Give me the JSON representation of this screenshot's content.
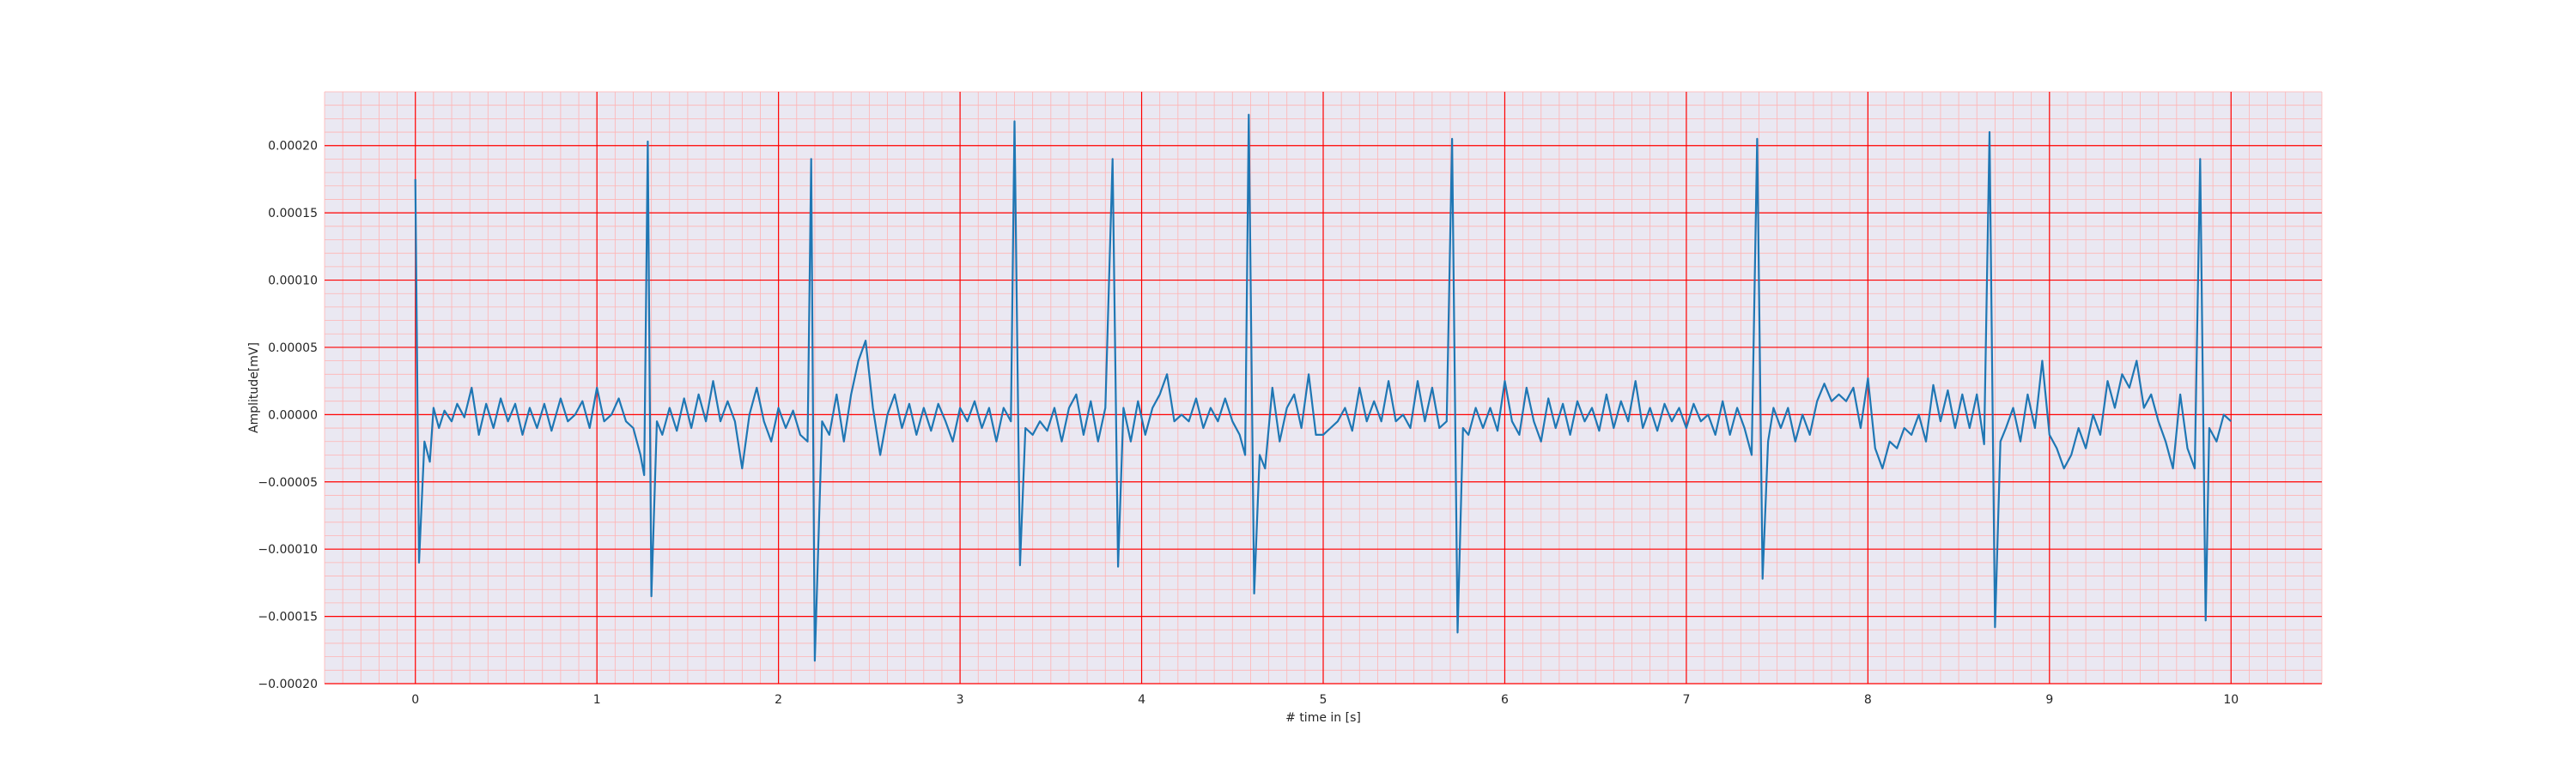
{
  "chart_data": {
    "type": "line",
    "title": "",
    "xlabel": "# time in [s]",
    "ylabel": "Amplitude[mV]",
    "xlim": [
      -0.5,
      10.5
    ],
    "ylim": [
      -0.0002,
      0.00024
    ],
    "xticks": [
      0,
      1,
      2,
      3,
      4,
      5,
      6,
      7,
      8,
      9,
      10
    ],
    "xtick_labels": [
      "0",
      "1",
      "2",
      "3",
      "4",
      "5",
      "6",
      "7",
      "8",
      "9",
      "10"
    ],
    "yticks": [
      -0.0002,
      -0.00015,
      -0.0001,
      -5e-05,
      0.0,
      5e-05,
      0.0001,
      0.00015,
      0.0002
    ],
    "ytick_labels": [
      "−0.00020",
      "−0.00015",
      "−0.00010",
      "−0.00005",
      "0.00000",
      "0.00005",
      "0.00010",
      "0.00015",
      "0.00020"
    ],
    "grid": true,
    "minor_grid": true,
    "colors": {
      "plot_background": "#eae8f2",
      "major_grid": "#ff0000",
      "minor_grid": "#ffb3b3",
      "line": "#1f77b4"
    },
    "series": [
      {
        "values_format": "[x_seconds, amplitude]",
        "points": [
          [
            0.0,
            0.000175
          ],
          [
            0.02,
            -0.00011
          ],
          [
            0.05,
            -2e-05
          ],
          [
            0.08,
            -3.5e-05
          ],
          [
            0.1,
            5e-06
          ],
          [
            0.13,
            -1e-05
          ],
          [
            0.16,
            3e-06
          ],
          [
            0.2,
            -5e-06
          ],
          [
            0.23,
            8e-06
          ],
          [
            0.27,
            -2e-06
          ],
          [
            0.31,
            2e-05
          ],
          [
            0.35,
            -1.5e-05
          ],
          [
            0.39,
            8e-06
          ],
          [
            0.43,
            -1e-05
          ],
          [
            0.47,
            1.2e-05
          ],
          [
            0.51,
            -5e-06
          ],
          [
            0.55,
            8e-06
          ],
          [
            0.59,
            -1.5e-05
          ],
          [
            0.63,
            5e-06
          ],
          [
            0.67,
            -1e-05
          ],
          [
            0.71,
            8e-06
          ],
          [
            0.75,
            -1.2e-05
          ],
          [
            0.8,
            1.2e-05
          ],
          [
            0.84,
            -5e-06
          ],
          [
            0.88,
            0.0
          ],
          [
            0.92,
            1e-05
          ],
          [
            0.96,
            -1e-05
          ],
          [
            1.0,
            2e-05
          ],
          [
            1.04,
            -5e-06
          ],
          [
            1.08,
            0.0
          ],
          [
            1.12,
            1.2e-05
          ],
          [
            1.16,
            -5e-06
          ],
          [
            1.2,
            -1e-05
          ],
          [
            1.24,
            -3e-05
          ],
          [
            1.26,
            -4.5e-05
          ],
          [
            1.28,
            0.000203
          ],
          [
            1.3,
            -0.000135
          ],
          [
            1.33,
            -5e-06
          ],
          [
            1.36,
            -1.5e-05
          ],
          [
            1.4,
            5e-06
          ],
          [
            1.44,
            -1.2e-05
          ],
          [
            1.48,
            1.2e-05
          ],
          [
            1.52,
            -1e-05
          ],
          [
            1.56,
            1.5e-05
          ],
          [
            1.6,
            -5e-06
          ],
          [
            1.64,
            2.5e-05
          ],
          [
            1.68,
            -5e-06
          ],
          [
            1.72,
            1e-05
          ],
          [
            1.76,
            -5e-06
          ],
          [
            1.8,
            -4e-05
          ],
          [
            1.84,
            0.0
          ],
          [
            1.88,
            2e-05
          ],
          [
            1.92,
            -5e-06
          ],
          [
            1.96,
            -2e-05
          ],
          [
            2.0,
            5e-06
          ],
          [
            2.04,
            -1e-05
          ],
          [
            2.08,
            3e-06
          ],
          [
            2.12,
            -1.5e-05
          ],
          [
            2.16,
            -2e-05
          ],
          [
            2.18,
            0.00019
          ],
          [
            2.2,
            -0.000183
          ],
          [
            2.24,
            -5e-06
          ],
          [
            2.28,
            -1.5e-05
          ],
          [
            2.32,
            1.5e-05
          ],
          [
            2.36,
            -2e-05
          ],
          [
            2.4,
            1.5e-05
          ],
          [
            2.44,
            4e-05
          ],
          [
            2.48,
            5.5e-05
          ],
          [
            2.52,
            5e-06
          ],
          [
            2.56,
            -3e-05
          ],
          [
            2.6,
            0.0
          ],
          [
            2.64,
            1.5e-05
          ],
          [
            2.68,
            -1e-05
          ],
          [
            2.72,
            8e-06
          ],
          [
            2.76,
            -1.5e-05
          ],
          [
            2.8,
            5e-06
          ],
          [
            2.84,
            -1.2e-05
          ],
          [
            2.88,
            8e-06
          ],
          [
            2.92,
            -5e-06
          ],
          [
            2.96,
            -2e-05
          ],
          [
            3.0,
            5e-06
          ],
          [
            3.04,
            -5e-06
          ],
          [
            3.08,
            1e-05
          ],
          [
            3.12,
            -1e-05
          ],
          [
            3.16,
            5e-06
          ],
          [
            3.2,
            -2e-05
          ],
          [
            3.24,
            5e-06
          ],
          [
            3.28,
            -5e-06
          ],
          [
            3.3,
            0.000218
          ],
          [
            3.33,
            -0.000112
          ],
          [
            3.36,
            -1e-05
          ],
          [
            3.4,
            -1.5e-05
          ],
          [
            3.44,
            -5e-06
          ],
          [
            3.48,
            -1.2e-05
          ],
          [
            3.52,
            5e-06
          ],
          [
            3.56,
            -2e-05
          ],
          [
            3.6,
            5e-06
          ],
          [
            3.64,
            1.5e-05
          ],
          [
            3.68,
            -1.5e-05
          ],
          [
            3.72,
            1e-05
          ],
          [
            3.76,
            -2e-05
          ],
          [
            3.8,
            5e-06
          ],
          [
            3.84,
            0.00019
          ],
          [
            3.87,
            -0.000113
          ],
          [
            3.9,
            5e-06
          ],
          [
            3.94,
            -2e-05
          ],
          [
            3.98,
            1e-05
          ],
          [
            4.02,
            -1.5e-05
          ],
          [
            4.06,
            5e-06
          ],
          [
            4.1,
            1.5e-05
          ],
          [
            4.14,
            3e-05
          ],
          [
            4.18,
            -5e-06
          ],
          [
            4.22,
            0.0
          ],
          [
            4.26,
            -5e-06
          ],
          [
            4.3,
            1.2e-05
          ],
          [
            4.34,
            -1e-05
          ],
          [
            4.38,
            5e-06
          ],
          [
            4.42,
            -5e-06
          ],
          [
            4.46,
            1.2e-05
          ],
          [
            4.5,
            -5e-06
          ],
          [
            4.54,
            -1.5e-05
          ],
          [
            4.57,
            -3e-05
          ],
          [
            4.59,
            0.000223
          ],
          [
            4.62,
            -0.000133
          ],
          [
            4.65,
            -3e-05
          ],
          [
            4.68,
            -4e-05
          ],
          [
            4.72,
            2e-05
          ],
          [
            4.76,
            -2e-05
          ],
          [
            4.8,
            5e-06
          ],
          [
            4.84,
            1.5e-05
          ],
          [
            4.88,
            -1e-05
          ],
          [
            4.92,
            3e-05
          ],
          [
            4.96,
            -1.5e-05
          ],
          [
            5.0,
            -1.5e-05
          ],
          [
            5.04,
            -1e-05
          ],
          [
            5.08,
            -5e-06
          ],
          [
            5.12,
            5e-06
          ],
          [
            5.16,
            -1.2e-05
          ],
          [
            5.2,
            2e-05
          ],
          [
            5.24,
            -5e-06
          ],
          [
            5.28,
            1e-05
          ],
          [
            5.32,
            -5e-06
          ],
          [
            5.36,
            2.5e-05
          ],
          [
            5.4,
            -5e-06
          ],
          [
            5.44,
            0.0
          ],
          [
            5.48,
            -1e-05
          ],
          [
            5.52,
            2.5e-05
          ],
          [
            5.56,
            -5e-06
          ],
          [
            5.6,
            2e-05
          ],
          [
            5.64,
            -1e-05
          ],
          [
            5.68,
            -5e-06
          ],
          [
            5.71,
            0.000205
          ],
          [
            5.74,
            -0.000162
          ],
          [
            5.77,
            -1e-05
          ],
          [
            5.8,
            -1.5e-05
          ],
          [
            5.84,
            5e-06
          ],
          [
            5.88,
            -1e-05
          ],
          [
            5.92,
            5e-06
          ],
          [
            5.96,
            -1.2e-05
          ],
          [
            6.0,
            2.5e-05
          ],
          [
            6.04,
            -5e-06
          ],
          [
            6.08,
            -1.5e-05
          ],
          [
            6.12,
            2e-05
          ],
          [
            6.16,
            -5e-06
          ],
          [
            6.2,
            -2e-05
          ],
          [
            6.24,
            1.2e-05
          ],
          [
            6.28,
            -1e-05
          ],
          [
            6.32,
            8e-06
          ],
          [
            6.36,
            -1.5e-05
          ],
          [
            6.4,
            1e-05
          ],
          [
            6.44,
            -5e-06
          ],
          [
            6.48,
            5e-06
          ],
          [
            6.52,
            -1.2e-05
          ],
          [
            6.56,
            1.5e-05
          ],
          [
            6.6,
            -1e-05
          ],
          [
            6.64,
            1e-05
          ],
          [
            6.68,
            -5e-06
          ],
          [
            6.72,
            2.5e-05
          ],
          [
            6.76,
            -1e-05
          ],
          [
            6.8,
            5e-06
          ],
          [
            6.84,
            -1.2e-05
          ],
          [
            6.88,
            8e-06
          ],
          [
            6.92,
            -5e-06
          ],
          [
            6.96,
            5e-06
          ],
          [
            7.0,
            -1e-05
          ],
          [
            7.04,
            8e-06
          ],
          [
            7.08,
            -5e-06
          ],
          [
            7.12,
            0.0
          ],
          [
            7.16,
            -1.5e-05
          ],
          [
            7.2,
            1e-05
          ],
          [
            7.24,
            -1.5e-05
          ],
          [
            7.28,
            5e-06
          ],
          [
            7.32,
            -1e-05
          ],
          [
            7.36,
            -3e-05
          ],
          [
            7.39,
            0.000205
          ],
          [
            7.42,
            -0.000122
          ],
          [
            7.45,
            -2e-05
          ],
          [
            7.48,
            5e-06
          ],
          [
            7.52,
            -1e-05
          ],
          [
            7.56,
            5e-06
          ],
          [
            7.6,
            -2e-05
          ],
          [
            7.64,
            0.0
          ],
          [
            7.68,
            -1.5e-05
          ],
          [
            7.72,
            1e-05
          ],
          [
            7.76,
            2.3e-05
          ],
          [
            7.8,
            1e-05
          ],
          [
            7.84,
            1.5e-05
          ],
          [
            7.88,
            1e-05
          ],
          [
            7.92,
            2e-05
          ],
          [
            7.96,
            -1e-05
          ],
          [
            8.0,
            2.7e-05
          ],
          [
            8.04,
            -2.5e-05
          ],
          [
            8.08,
            -4e-05
          ],
          [
            8.12,
            -2e-05
          ],
          [
            8.16,
            -2.5e-05
          ],
          [
            8.2,
            -1e-05
          ],
          [
            8.24,
            -1.5e-05
          ],
          [
            8.28,
            0.0
          ],
          [
            8.32,
            -2e-05
          ],
          [
            8.36,
            2.2e-05
          ],
          [
            8.4,
            -5e-06
          ],
          [
            8.44,
            1.8e-05
          ],
          [
            8.48,
            -1e-05
          ],
          [
            8.52,
            1.5e-05
          ],
          [
            8.56,
            -1e-05
          ],
          [
            8.6,
            1.5e-05
          ],
          [
            8.64,
            -2.2e-05
          ],
          [
            8.67,
            0.00021
          ],
          [
            8.7,
            -0.000158
          ],
          [
            8.73,
            -2e-05
          ],
          [
            8.76,
            -1e-05
          ],
          [
            8.8,
            5e-06
          ],
          [
            8.84,
            -2e-05
          ],
          [
            8.88,
            1.5e-05
          ],
          [
            8.92,
            -1e-05
          ],
          [
            8.96,
            4e-05
          ],
          [
            9.0,
            -1.5e-05
          ],
          [
            9.04,
            -2.5e-05
          ],
          [
            9.08,
            -4e-05
          ],
          [
            9.12,
            -3e-05
          ],
          [
            9.16,
            -1e-05
          ],
          [
            9.2,
            -2.5e-05
          ],
          [
            9.24,
            0.0
          ],
          [
            9.28,
            -1.5e-05
          ],
          [
            9.32,
            2.5e-05
          ],
          [
            9.36,
            5e-06
          ],
          [
            9.4,
            3e-05
          ],
          [
            9.44,
            2e-05
          ],
          [
            9.48,
            4e-05
          ],
          [
            9.52,
            5e-06
          ],
          [
            9.56,
            1.5e-05
          ],
          [
            9.6,
            -5e-06
          ],
          [
            9.64,
            -2e-05
          ],
          [
            9.68,
            -4e-05
          ],
          [
            9.72,
            1.5e-05
          ],
          [
            9.76,
            -2.5e-05
          ],
          [
            9.8,
            -4e-05
          ],
          [
            9.83,
            0.00019
          ],
          [
            9.86,
            -0.000153
          ],
          [
            9.88,
            -1e-05
          ],
          [
            9.92,
            -2e-05
          ],
          [
            9.96,
            0.0
          ],
          [
            10.0,
            -5e-06
          ]
        ]
      }
    ]
  }
}
